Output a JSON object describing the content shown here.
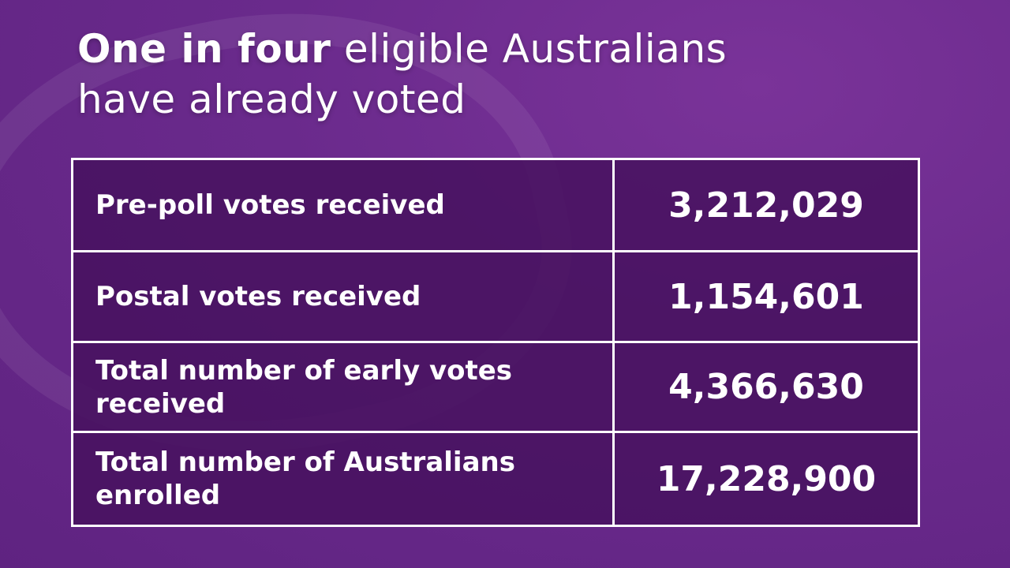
{
  "headline": {
    "bold": "One in four",
    "rest_line1": " eligible Australians",
    "line2": "have already voted"
  },
  "rows": [
    {
      "label": "Pre-poll votes received",
      "value": "3,212,029"
    },
    {
      "label": "Postal votes received",
      "value": "1,154,601"
    },
    {
      "label": "Total number of early votes received",
      "value": "4,366,630"
    },
    {
      "label": "Total number of Australians enrolled",
      "value": "17,228,900"
    }
  ],
  "colors": {
    "background": "#6a2a8c",
    "cell": "#4f1a68",
    "border": "#ffffff"
  }
}
